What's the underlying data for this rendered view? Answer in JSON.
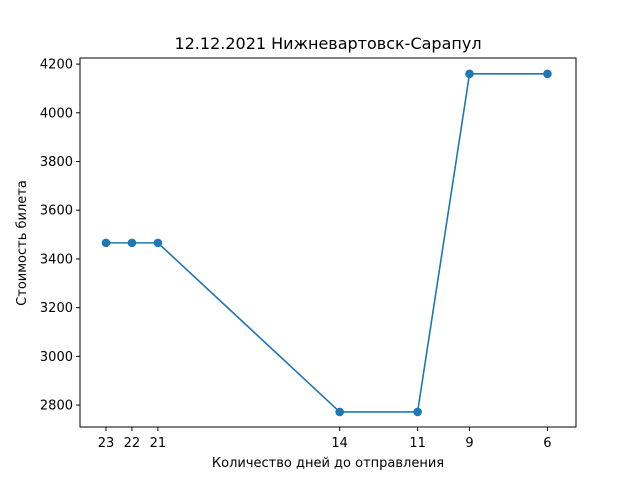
{
  "chart_data": {
    "type": "line",
    "title": "12.12.2021 Нижневартовск-Сарапул",
    "xlabel": "Количество дней до отправления",
    "ylabel": "Стоимость билета",
    "x_tick_labels": [
      "23",
      "22",
      "21",
      "14",
      "11",
      "9",
      "6"
    ],
    "y_ticks": [
      2800,
      3000,
      3200,
      3400,
      3600,
      3800,
      4000,
      4200
    ],
    "ylim": [
      2710,
      4225
    ],
    "xlim_days_reversed": [
      24.0,
      4.9
    ],
    "grid": false,
    "series": [
      {
        "color": "#1f77b4",
        "marker": "circle",
        "points": [
          {
            "x": 23,
            "y": 3466
          },
          {
            "x": 22,
            "y": 3466
          },
          {
            "x": 21,
            "y": 3466
          },
          {
            "x": 14,
            "y": 2772
          },
          {
            "x": 11,
            "y": 2772
          },
          {
            "x": 9,
            "y": 4160
          },
          {
            "x": 6,
            "y": 4160
          }
        ]
      }
    ]
  }
}
